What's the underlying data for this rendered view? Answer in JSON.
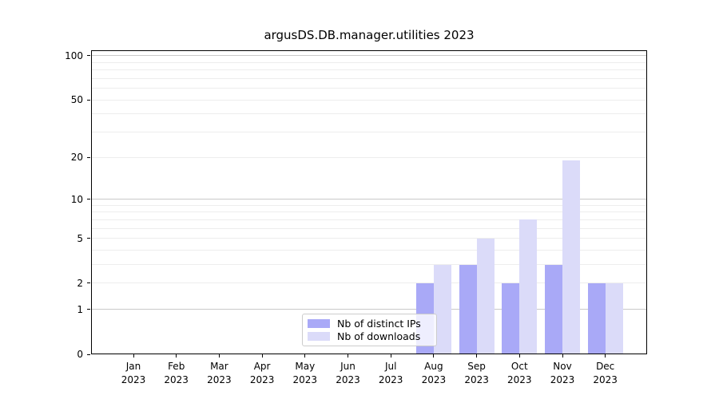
{
  "title": "argusDS.DB.manager.utilities 2023",
  "chart_data": {
    "type": "bar",
    "categories": [
      "Jan",
      "Feb",
      "Mar",
      "Apr",
      "May",
      "Jun",
      "Jul",
      "Aug",
      "Sep",
      "Oct",
      "Nov",
      "Dec"
    ],
    "year_label": "2023",
    "series": [
      {
        "name": "Nb of distinct IPs",
        "key": "distinct-ips",
        "color": "#a9a9f7",
        "values": [
          0,
          0,
          0,
          0,
          0,
          0,
          0,
          2,
          3,
          2,
          3,
          2
        ]
      },
      {
        "name": "Nb of downloads",
        "key": "downloads",
        "color": "#dbdbf9",
        "values": [
          0,
          0,
          0,
          0,
          0,
          0,
          0,
          3,
          5,
          7,
          19,
          2
        ]
      }
    ],
    "xlabel": "",
    "ylabel": "",
    "y_scale": "log1p-symlog",
    "y_tick_values": [
      0,
      1,
      2,
      5,
      10,
      20,
      50,
      100
    ],
    "y_tick_labels": [
      "0",
      "1",
      "2",
      "5",
      "10",
      "20",
      "50",
      "100"
    ],
    "ylim": [
      0,
      110
    ],
    "y_major_gridlines": [
      1,
      10,
      100
    ],
    "y_minor_gridlines": [
      2,
      3,
      4,
      5,
      6,
      7,
      8,
      9,
      20,
      30,
      40,
      50,
      60,
      70,
      80,
      90
    ],
    "grid": true,
    "legend_position": "lower center",
    "colors": {
      "bar_distinct_ips": "#a9a9f7",
      "bar_downloads": "#dbdbf9",
      "grid_major": "#c9c9c9",
      "grid_minor": "#ededed",
      "spine": "#000000",
      "legend_border": "#cccccc",
      "background": "#ffffff"
    }
  }
}
